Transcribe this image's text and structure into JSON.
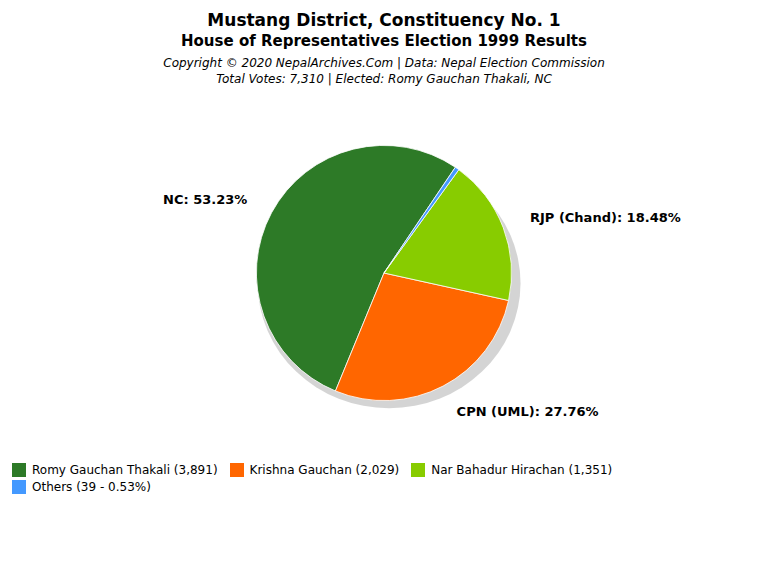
{
  "chart_data": {
    "type": "pie",
    "title": "Mustang District, Constituency No. 1",
    "subtitle": "House of Representatives Election 1999 Results",
    "annotations": [
      "Copyright © 2020 NepalArchives.Com | Data: Nepal Election Commission",
      "Total Votes: 7,310 | Elected: Romy Gauchan Thakali, NC"
    ],
    "categories": [
      "Romy Gauchan Thakali (3,891)",
      "Krishna Gauchan (2,029)",
      "Nar Bahadur Hirachan (1,351)",
      "Others (39 - 0.53%)"
    ],
    "values": [
      53.23,
      27.76,
      18.48,
      0.53
    ],
    "value_labels": [
      "NC: 53.23%",
      "CPN (UML): 27.76%",
      "RJP (Chand): 18.48%",
      null
    ],
    "data_labels": true,
    "colors": [
      "#2d7a27",
      "#ff6600",
      "#88cc00",
      "#4499ff"
    ],
    "legend": "bottom"
  }
}
